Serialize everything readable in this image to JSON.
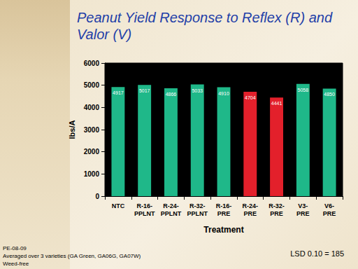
{
  "chart_data": {
    "type": "bar",
    "title": "Peanut Yield Response to Reflex (R) and\nValor (V)",
    "xlabel": "Treatment",
    "ylabel": "lbs/A",
    "categories": [
      "NTC",
      "R-16-\nPPLNT",
      "R-24-\nPPLNT",
      "R-32-\nPPLNT",
      "R-16-\nPRE",
      "R-24-\nPRE",
      "R-32-\nPRE",
      "V3-\nPRE",
      "V6-\nPRE"
    ],
    "values": [
      4917,
      5017,
      4866,
      5033,
      4910,
      4704,
      4441,
      5058,
      4850
    ],
    "colors": [
      "#1fb889",
      "#1fb889",
      "#1fb889",
      "#1fb889",
      "#1fb889",
      "#e3202b",
      "#e3202b",
      "#1fb889",
      "#1fb889"
    ],
    "ylim": [
      0,
      6000
    ],
    "yticks": [
      0,
      1000,
      2000,
      3000,
      4000,
      5000,
      6000
    ],
    "grid": false,
    "data_labels": true,
    "annotations": [
      "PE-08-09",
      "Averaged over 3 varieties (GA Green, GA06G, GA07W)",
      "Weed-free",
      "LSD 0.10 = 185"
    ]
  }
}
